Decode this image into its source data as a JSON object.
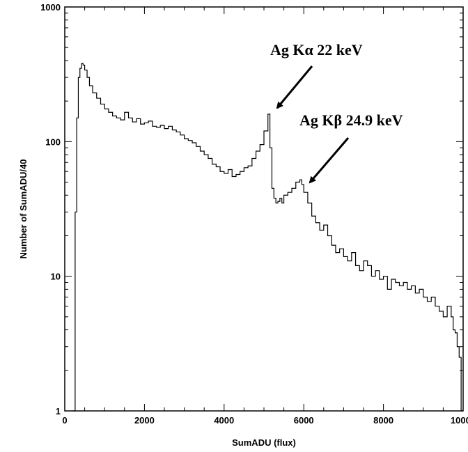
{
  "chart_data": {
    "type": "line",
    "style": "step",
    "xlabel": "SumADU (flux)",
    "ylabel": "Number of SumADU/40",
    "xlim": [
      0,
      10000
    ],
    "ylim": [
      1,
      1000
    ],
    "yscale": "log",
    "grid": false,
    "x_ticks": [
      0,
      2000,
      4000,
      6000,
      8000,
      10000
    ],
    "x_tick_labels": [
      "0",
      "2000",
      "4000",
      "6000",
      "8000",
      "10000"
    ],
    "y_ticks": [
      1,
      10,
      100,
      1000
    ],
    "y_tick_labels": [
      "1",
      "10",
      "100",
      "1000"
    ],
    "series": [
      {
        "x": [
          200,
          260,
          300,
          340,
          380,
          420,
          460,
          500,
          560,
          620,
          700,
          800,
          900,
          1000,
          1100,
          1200,
          1300,
          1400,
          1500,
          1600,
          1700,
          1800,
          1900,
          2000,
          2100,
          2200,
          2300,
          2400,
          2500,
          2600,
          2700,
          2800,
          2900,
          3000,
          3100,
          3200,
          3300,
          3400,
          3500,
          3600,
          3700,
          3800,
          3900,
          4000,
          4100,
          4200,
          4300,
          4400,
          4500,
          4600,
          4700,
          4800,
          4900,
          5000,
          5100,
          5150,
          5200,
          5250,
          5300,
          5350,
          5400,
          5450,
          5500,
          5600,
          5700,
          5800,
          5900,
          5950,
          6000,
          6100,
          6200,
          6300,
          6400,
          6500,
          6600,
          6700,
          6800,
          6900,
          7000,
          7100,
          7200,
          7300,
          7400,
          7500,
          7600,
          7700,
          7800,
          7900,
          8000,
          8100,
          8200,
          8300,
          8400,
          8500,
          8600,
          8700,
          8800,
          8900,
          9000,
          9100,
          9200,
          9300,
          9400,
          9500,
          9600,
          9700,
          9750,
          9800,
          9850,
          9900,
          9950
        ],
        "values": [
          1,
          30,
          150,
          300,
          350,
          380,
          370,
          340,
          300,
          260,
          230,
          210,
          190,
          175,
          165,
          155,
          150,
          145,
          165,
          150,
          140,
          148,
          135,
          138,
          142,
          130,
          128,
          132,
          125,
          130,
          122,
          118,
          112,
          105,
          102,
          98,
          92,
          85,
          80,
          75,
          68,
          65,
          60,
          58,
          62,
          55,
          57,
          60,
          64,
          66,
          75,
          85,
          95,
          120,
          160,
          90,
          45,
          38,
          35,
          36,
          38,
          35,
          40,
          42,
          45,
          50,
          52,
          48,
          42,
          35,
          28,
          25,
          22,
          24,
          20,
          17,
          15,
          16,
          14,
          13,
          15,
          12,
          11,
          13,
          12,
          10,
          11,
          9.5,
          10,
          8,
          9.5,
          9,
          8.5,
          9,
          8,
          8.5,
          7.5,
          8,
          7,
          6.5,
          7,
          6,
          5.5,
          5,
          6,
          5,
          4,
          3.8,
          3,
          2.5,
          1
        ]
      }
    ],
    "annotations": [
      {
        "text": "Ag Kα 22 keV",
        "points_to": {
          "x": 5250,
          "y": 160
        }
      },
      {
        "text": "Ag Kβ 24.9 keV",
        "points_to": {
          "x": 6050,
          "y": 48
        }
      }
    ]
  }
}
